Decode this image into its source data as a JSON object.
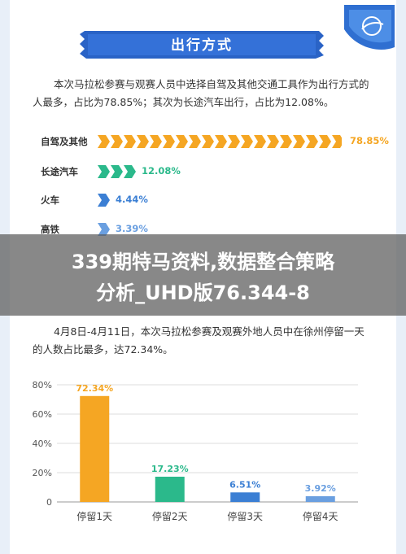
{
  "section_title": "出行方式",
  "paragraph_1": "本次马拉松参赛与观赛人员中选择自驾及其他交通工具作为出行方式的人最多，占比为78.85%；其次为长途汽车出行，占比为12.08%。",
  "transport": [
    {
      "label": "自驾及其他",
      "pct": "78.85%",
      "value": 78.85,
      "color": "#f5a623"
    },
    {
      "label": "长途汽车",
      "pct": "12.08%",
      "value": 12.08,
      "color": "#2bb98b"
    },
    {
      "label": "火车",
      "pct": "4.44%",
      "value": 4.44,
      "color": "#3b7fd4"
    },
    {
      "label": "高铁",
      "pct": "3.39%",
      "value": 3.39,
      "color": "#6a9fe0"
    }
  ],
  "overlay": {
    "line1": "339期特马资料,数据整合策略",
    "line2": "分析_UHD版76.344-8"
  },
  "paragraph_2": "4月8日-4月11日，本次马拉松参赛及观赛外地人员中在徐州停留一天的人数占比最多，达72.34%。",
  "chart_data": {
    "type": "bar",
    "categories": [
      "停留1天",
      "停留2天",
      "停留3天",
      "停留4天"
    ],
    "values": [
      72.34,
      17.23,
      6.51,
      3.92
    ],
    "value_labels": [
      "72.34%",
      "17.23%",
      "6.51%",
      "3.92%"
    ],
    "colors": [
      "#f5a623",
      "#2bb98b",
      "#3b7fd4",
      "#6a9fe0"
    ],
    "ylim": [
      0,
      80
    ],
    "yticks": [
      "0",
      "20%",
      "40%",
      "60%",
      "80%"
    ],
    "ytick_values": [
      0,
      20,
      40,
      60,
      80
    ],
    "grid": true
  }
}
